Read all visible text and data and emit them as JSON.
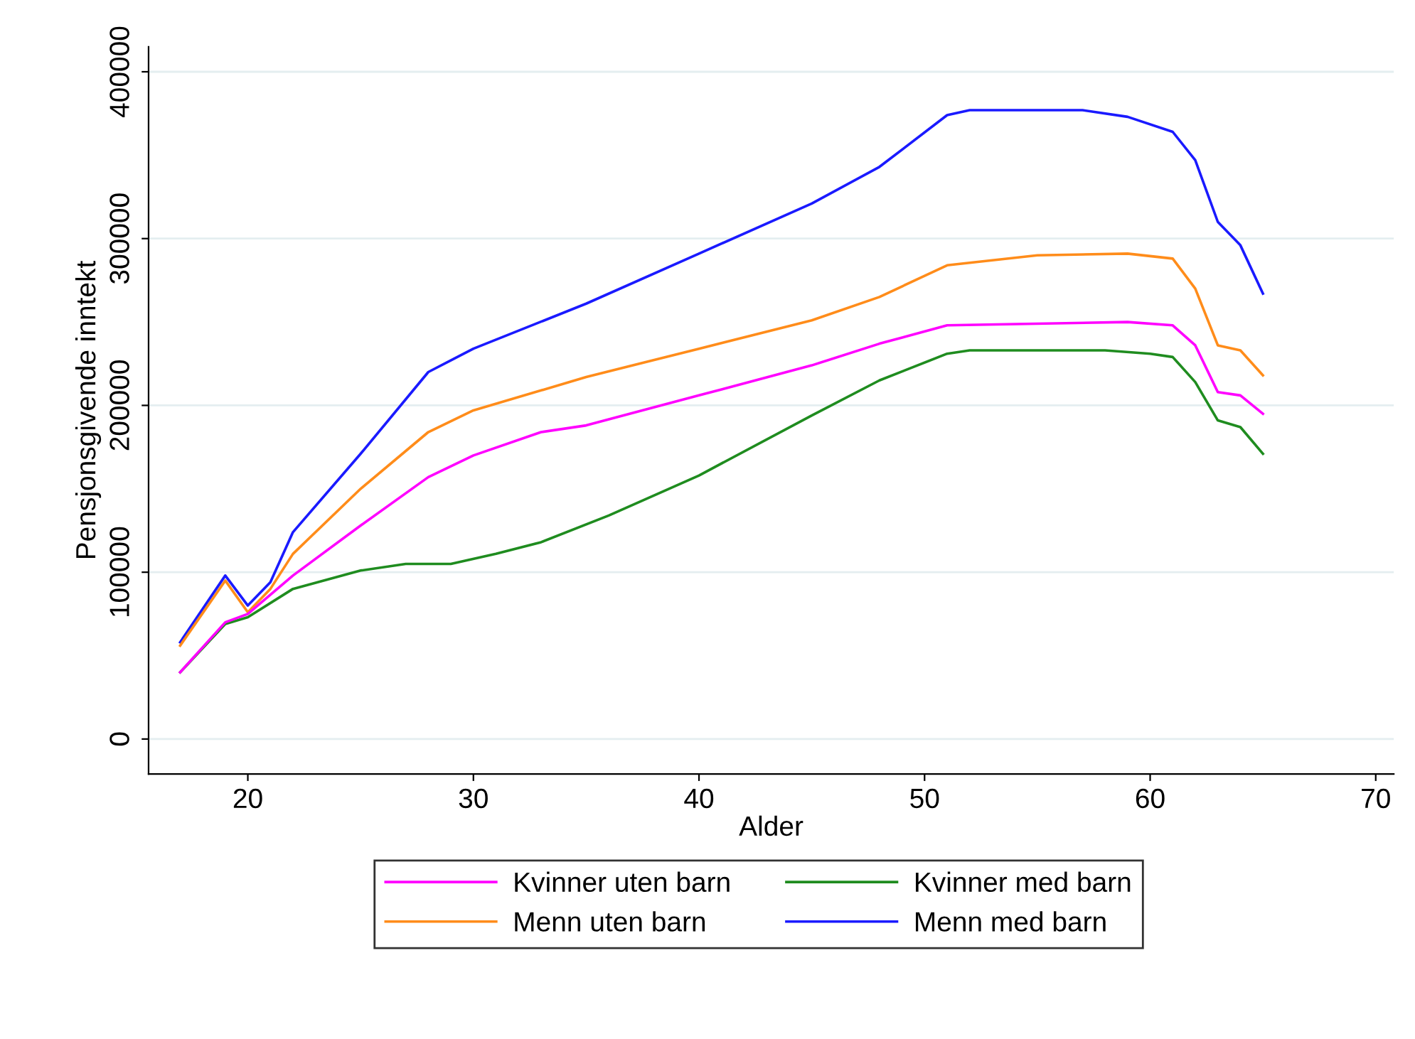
{
  "chart_data": {
    "type": "line",
    "xlabel": "Alder",
    "ylabel": "Pensjonsgivende inntekt",
    "xlim": [
      15.6,
      70.8
    ],
    "ylim": [
      -21000,
      415000
    ],
    "xticks": [
      20,
      30,
      40,
      50,
      60,
      70
    ],
    "yticks": [
      0,
      100000,
      200000,
      300000,
      400000
    ],
    "grid": "y",
    "legend": "bottom",
    "marker": "none",
    "line_style": "solid",
    "series": [
      {
        "name": "Kvinner uten barn",
        "color": "#ff00ff",
        "x": [
          17,
          19,
          20,
          22,
          25,
          28,
          30,
          33,
          35,
          40,
          45,
          48,
          51,
          59,
          61,
          62,
          63,
          64,
          65
        ],
        "values": [
          40000,
          70000,
          75000,
          98000,
          128000,
          157000,
          170000,
          184000,
          188000,
          206000,
          224000,
          237000,
          248000,
          250000,
          248000,
          236000,
          208000,
          206000,
          195000
        ]
      },
      {
        "name": "Menn uten barn",
        "color": "#ff8c1a",
        "x": [
          17,
          19,
          20,
          21,
          22,
          25,
          28,
          30,
          35,
          40,
          45,
          48,
          51,
          55,
          59,
          61,
          62,
          63,
          64,
          65
        ],
        "values": [
          56000,
          95000,
          76000,
          90000,
          111000,
          150000,
          184000,
          197000,
          217000,
          234000,
          251000,
          265000,
          284000,
          290000,
          291000,
          288000,
          270000,
          236000,
          233000,
          218000
        ]
      },
      {
        "name": "Kvinner med barn",
        "color": "#1f8c1f",
        "x": [
          17,
          19,
          20,
          22,
          25,
          27,
          29,
          31,
          33,
          36,
          40,
          45,
          48,
          51,
          52,
          58,
          60,
          61,
          62,
          63,
          64,
          65
        ],
        "values": [
          40000,
          69000,
          73000,
          90000,
          101000,
          105000,
          105000,
          111000,
          118000,
          134000,
          158000,
          194000,
          215000,
          231000,
          233000,
          233000,
          231000,
          229000,
          214000,
          191000,
          187000,
          171000
        ]
      },
      {
        "name": "Menn med barn",
        "color": "#1a1aff",
        "x": [
          17,
          19,
          20,
          21,
          22,
          25,
          28,
          30,
          35,
          40,
          45,
          48,
          51,
          52,
          57,
          59,
          61,
          62,
          63,
          64,
          65
        ],
        "values": [
          58000,
          98000,
          80000,
          94000,
          124000,
          171000,
          220000,
          234000,
          261000,
          291000,
          321000,
          343000,
          374000,
          377000,
          377000,
          373000,
          364000,
          347000,
          310000,
          296000,
          267000
        ]
      }
    ]
  }
}
